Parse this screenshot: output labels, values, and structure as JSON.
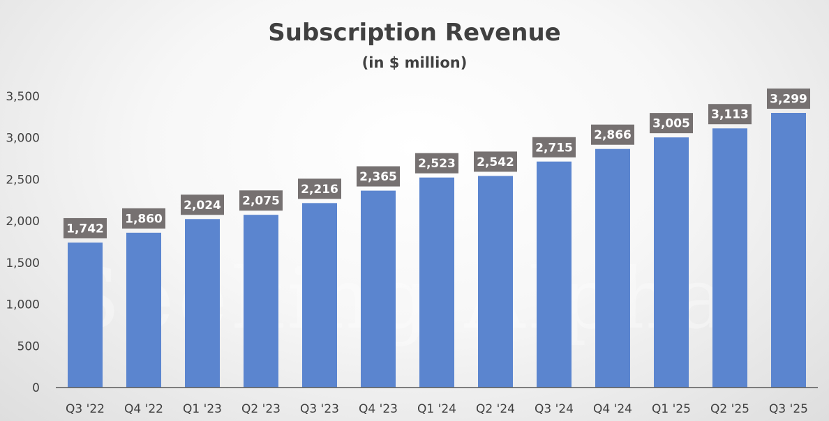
{
  "chart_data": {
    "type": "bar",
    "title": "Subscription Revenue",
    "subtitle": "(in $ million)",
    "xlabel": "",
    "ylabel": "",
    "categories": [
      "Q3 '22",
      "Q4 '22",
      "Q1 '23",
      "Q2 '23",
      "Q3 '23",
      "Q4 '23",
      "Q1 '24",
      "Q2 '24",
      "Q3 '24",
      "Q4 '24",
      "Q1 '25",
      "Q2 '25",
      "Q3 '25"
    ],
    "values": [
      1742,
      1860,
      2024,
      2075,
      2216,
      2365,
      2523,
      2542,
      2715,
      2866,
      3005,
      3113,
      3299
    ],
    "data_labels": [
      "1,742",
      "1,860",
      "2,024",
      "2,075",
      "2,216",
      "2,365",
      "2,523",
      "2,542",
      "2,715",
      "2,866",
      "3,005",
      "3,113",
      "3,299"
    ],
    "ylim": [
      0,
      3500
    ],
    "yticks": [
      0,
      500,
      1000,
      1500,
      2000,
      2500,
      3000,
      3500
    ],
    "ytick_labels": [
      "0",
      "500",
      "1,000",
      "1,500",
      "2,000",
      "2,500",
      "3,000",
      "3,500"
    ],
    "grid": false,
    "legend": "none",
    "colors": {
      "bar": "#5b85cf",
      "data_label_bg": "#767171",
      "text": "#404040",
      "axis": "#595959"
    }
  },
  "watermark": "Seeking Alpha"
}
